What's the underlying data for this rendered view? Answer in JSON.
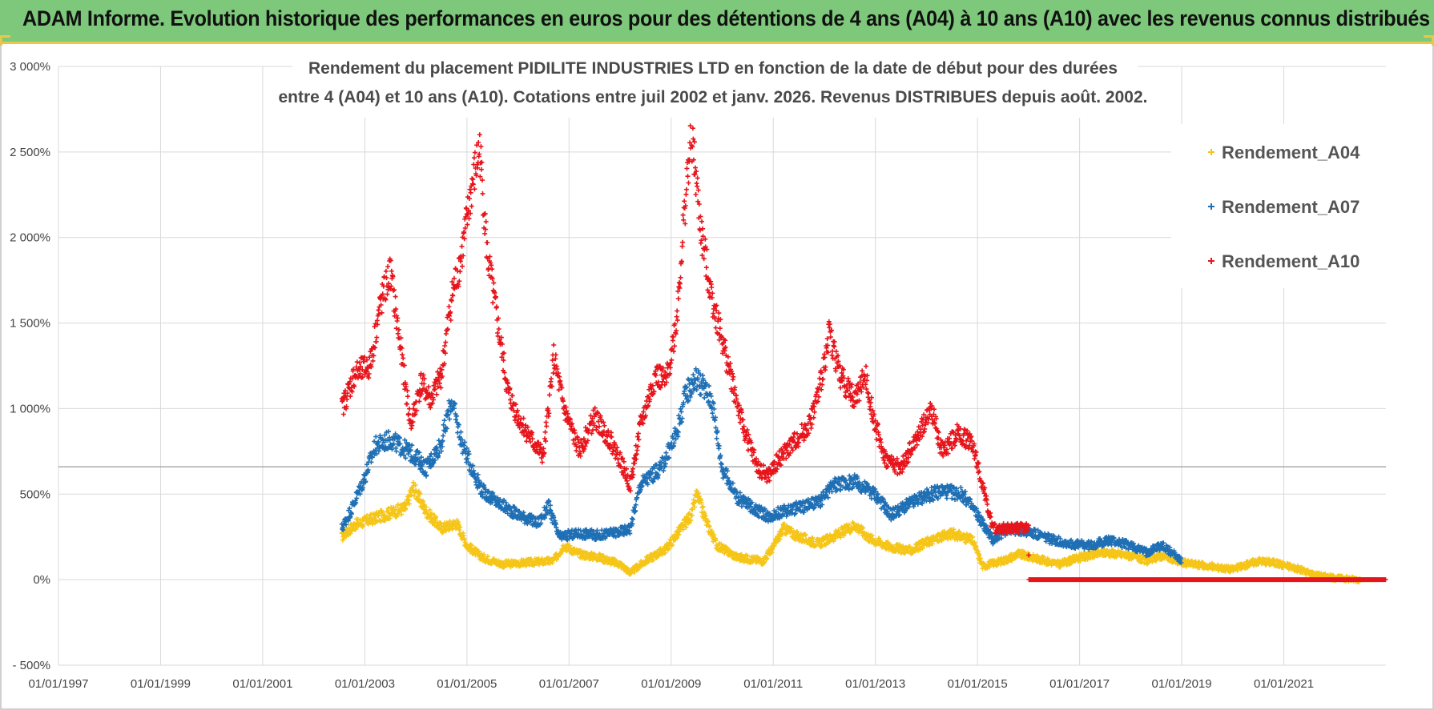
{
  "banner": {
    "title": "ADAM Informe. Evolution historique des performances en euros pour des détentions de 4 ans (A04) à 10 ans (A10) avec les revenus connus distribués"
  },
  "colors": {
    "banner_bg": "#7dc87a",
    "banner_border": "#e8c84a",
    "A04": "#f5c518",
    "A07": "#1f6fb5",
    "A10": "#e8141b",
    "grid": "#d9d9d9"
  },
  "chart_data": {
    "type": "scatter",
    "title_line1": "Rendement du placement PIDILITE INDUSTRIES LTD en fonction de la date de début pour des durées",
    "title_line2": "entre 4 (A04) et 10 ans (A10).  Cotations entre juil 2002 et janv. 2026. Revenus DISTRIBUES depuis août. 2002.",
    "xlabel": "",
    "ylabel": "",
    "xlim": [
      1997.0,
      2023.0
    ],
    "ylim": [
      -500,
      3000
    ],
    "grid": true,
    "legend_position": "top-right",
    "x_ticks": [
      {
        "value": 1997,
        "label": "01/01/1997"
      },
      {
        "value": 1999,
        "label": "01/01/1999"
      },
      {
        "value": 2001,
        "label": "01/01/2001"
      },
      {
        "value": 2003,
        "label": "01/01/2003"
      },
      {
        "value": 2005,
        "label": "01/01/2005"
      },
      {
        "value": 2007,
        "label": "01/01/2007"
      },
      {
        "value": 2009,
        "label": "01/01/2009"
      },
      {
        "value": 2011,
        "label": "01/01/2011"
      },
      {
        "value": 2013,
        "label": "01/01/2013"
      },
      {
        "value": 2015,
        "label": "01/01/2015"
      },
      {
        "value": 2017,
        "label": "01/01/2017"
      },
      {
        "value": 2019,
        "label": "01/01/2019"
      },
      {
        "value": 2021,
        "label": "01/01/2021"
      }
    ],
    "y_ticks": [
      {
        "value": 3000,
        "label": "3 000%"
      },
      {
        "value": 2500,
        "label": "2 500%"
      },
      {
        "value": 2000,
        "label": "2 000%"
      },
      {
        "value": 1500,
        "label": "1 500%"
      },
      {
        "value": 1000,
        "label": "1 000%"
      },
      {
        "value": 500,
        "label": "500%"
      },
      {
        "value": 0,
        "label": "0%"
      },
      {
        "value": -500,
        "label": "- 500%"
      }
    ],
    "reference_line": 660,
    "series": [
      {
        "name": "Rendement_A04",
        "color": "#f5c518",
        "points": [
          [
            2002.55,
            250
          ],
          [
            2002.8,
            320
          ],
          [
            2003.2,
            360
          ],
          [
            2003.5,
            390
          ],
          [
            2003.8,
            420
          ],
          [
            2003.95,
            540
          ],
          [
            2004.2,
            400
          ],
          [
            2004.5,
            300
          ],
          [
            2004.8,
            330
          ],
          [
            2005.0,
            200
          ],
          [
            2005.3,
            130
          ],
          [
            2005.7,
            90
          ],
          [
            2006.2,
            100
          ],
          [
            2006.7,
            110
          ],
          [
            2006.9,
            200
          ],
          [
            2007.2,
            150
          ],
          [
            2007.6,
            130
          ],
          [
            2008.0,
            90
          ],
          [
            2008.2,
            40
          ],
          [
            2008.5,
            110
          ],
          [
            2008.9,
            180
          ],
          [
            2009.2,
            300
          ],
          [
            2009.4,
            380
          ],
          [
            2009.5,
            500
          ],
          [
            2009.7,
            330
          ],
          [
            2009.9,
            200
          ],
          [
            2010.3,
            130
          ],
          [
            2010.8,
            110
          ],
          [
            2011.0,
            190
          ],
          [
            2011.2,
            300
          ],
          [
            2011.5,
            250
          ],
          [
            2011.9,
            210
          ],
          [
            2012.3,
            270
          ],
          [
            2012.6,
            320
          ],
          [
            2012.9,
            240
          ],
          [
            2013.3,
            190
          ],
          [
            2013.7,
            170
          ],
          [
            2014.0,
            220
          ],
          [
            2014.5,
            270
          ],
          [
            2014.9,
            230
          ],
          [
            2015.1,
            80
          ],
          [
            2015.5,
            110
          ],
          [
            2015.8,
            150
          ],
          [
            2016.2,
            120
          ],
          [
            2016.6,
            90
          ],
          [
            2017.0,
            130
          ],
          [
            2017.5,
            160
          ],
          [
            2018.0,
            140
          ],
          [
            2018.3,
            110
          ],
          [
            2018.6,
            140
          ],
          [
            2019.0,
            100
          ],
          [
            2019.5,
            80
          ],
          [
            2020.0,
            60
          ],
          [
            2020.5,
            110
          ],
          [
            2020.8,
            100
          ],
          [
            2021.2,
            70
          ],
          [
            2021.6,
            30
          ],
          [
            2022.0,
            10
          ],
          [
            2022.5,
            0
          ],
          [
            2022.8,
            0
          ]
        ]
      },
      {
        "name": "Rendement_A07",
        "color": "#1f6fb5",
        "points": [
          [
            2002.55,
            300
          ],
          [
            2002.75,
            420
          ],
          [
            2003.0,
            600
          ],
          [
            2003.2,
            780
          ],
          [
            2003.5,
            820
          ],
          [
            2003.8,
            760
          ],
          [
            2004.0,
            720
          ],
          [
            2004.2,
            650
          ],
          [
            2004.5,
            800
          ],
          [
            2004.7,
            1050
          ],
          [
            2004.9,
            800
          ],
          [
            2005.1,
            650
          ],
          [
            2005.3,
            520
          ],
          [
            2005.6,
            450
          ],
          [
            2006.0,
            380
          ],
          [
            2006.4,
            330
          ],
          [
            2006.6,
            430
          ],
          [
            2006.8,
            250
          ],
          [
            2007.2,
            270
          ],
          [
            2007.6,
            260
          ],
          [
            2008.0,
            280
          ],
          [
            2008.2,
            300
          ],
          [
            2008.4,
            560
          ],
          [
            2008.8,
            650
          ],
          [
            2009.1,
            850
          ],
          [
            2009.3,
            1100
          ],
          [
            2009.5,
            1180
          ],
          [
            2009.8,
            1050
          ],
          [
            2010.0,
            650
          ],
          [
            2010.3,
            480
          ],
          [
            2010.6,
            420
          ],
          [
            2010.9,
            370
          ],
          [
            2011.2,
            400
          ],
          [
            2011.6,
            430
          ],
          [
            2011.9,
            450
          ],
          [
            2012.2,
            560
          ],
          [
            2012.6,
            570
          ],
          [
            2013.0,
            500
          ],
          [
            2013.3,
            380
          ],
          [
            2013.6,
            430
          ],
          [
            2013.9,
            480
          ],
          [
            2014.3,
            520
          ],
          [
            2014.7,
            500
          ],
          [
            2015.0,
            380
          ],
          [
            2015.3,
            230
          ],
          [
            2015.6,
            300
          ],
          [
            2016.0,
            280
          ],
          [
            2016.4,
            240
          ],
          [
            2016.8,
            210
          ],
          [
            2017.2,
            200
          ],
          [
            2017.6,
            230
          ],
          [
            2018.0,
            200
          ],
          [
            2018.3,
            160
          ],
          [
            2018.6,
            200
          ],
          [
            2018.9,
            140
          ],
          [
            2019.0,
            100
          ]
        ]
      },
      {
        "name": "Rendement_A10",
        "color": "#e8141b",
        "points": [
          [
            2002.55,
            1000
          ],
          [
            2002.8,
            1200
          ],
          [
            2003.1,
            1250
          ],
          [
            2003.3,
            1600
          ],
          [
            2003.5,
            1800
          ],
          [
            2003.7,
            1350
          ],
          [
            2003.9,
            900
          ],
          [
            2004.1,
            1150
          ],
          [
            2004.3,
            1050
          ],
          [
            2004.5,
            1200
          ],
          [
            2004.7,
            1650
          ],
          [
            2004.9,
            1900
          ],
          [
            2005.1,
            2300
          ],
          [
            2005.25,
            2520
          ],
          [
            2005.4,
            1900
          ],
          [
            2005.6,
            1500
          ],
          [
            2005.8,
            1100
          ],
          [
            2006.0,
            950
          ],
          [
            2006.3,
            800
          ],
          [
            2006.5,
            720
          ],
          [
            2006.7,
            1300
          ],
          [
            2006.9,
            1000
          ],
          [
            2007.2,
            750
          ],
          [
            2007.5,
            950
          ],
          [
            2007.8,
            820
          ],
          [
            2008.0,
            700
          ],
          [
            2008.2,
            550
          ],
          [
            2008.4,
            900
          ],
          [
            2008.7,
            1200
          ],
          [
            2008.9,
            1150
          ],
          [
            2009.1,
            1500
          ],
          [
            2009.3,
            2300
          ],
          [
            2009.4,
            2600
          ],
          [
            2009.6,
            2000
          ],
          [
            2009.8,
            1650
          ],
          [
            2010.0,
            1400
          ],
          [
            2010.2,
            1150
          ],
          [
            2010.4,
            900
          ],
          [
            2010.7,
            650
          ],
          [
            2010.9,
            600
          ],
          [
            2011.1,
            700
          ],
          [
            2011.4,
            800
          ],
          [
            2011.7,
            900
          ],
          [
            2011.9,
            1100
          ],
          [
            2012.1,
            1450
          ],
          [
            2012.3,
            1200
          ],
          [
            2012.6,
            1050
          ],
          [
            2012.8,
            1200
          ],
          [
            2013.0,
            900
          ],
          [
            2013.2,
            700
          ],
          [
            2013.5,
            650
          ],
          [
            2013.8,
            820
          ],
          [
            2014.1,
            1000
          ],
          [
            2014.3,
            750
          ],
          [
            2014.6,
            850
          ],
          [
            2014.9,
            800
          ],
          [
            2015.1,
            550
          ],
          [
            2015.3,
            300
          ],
          [
            2015.5,
            300
          ],
          [
            2015.8,
            300
          ],
          [
            2016.0,
            300
          ],
          [
            2016.01,
            0
          ],
          [
            2018.0,
            0
          ],
          [
            2020.0,
            0
          ],
          [
            2023.0,
            0
          ]
        ]
      }
    ]
  }
}
